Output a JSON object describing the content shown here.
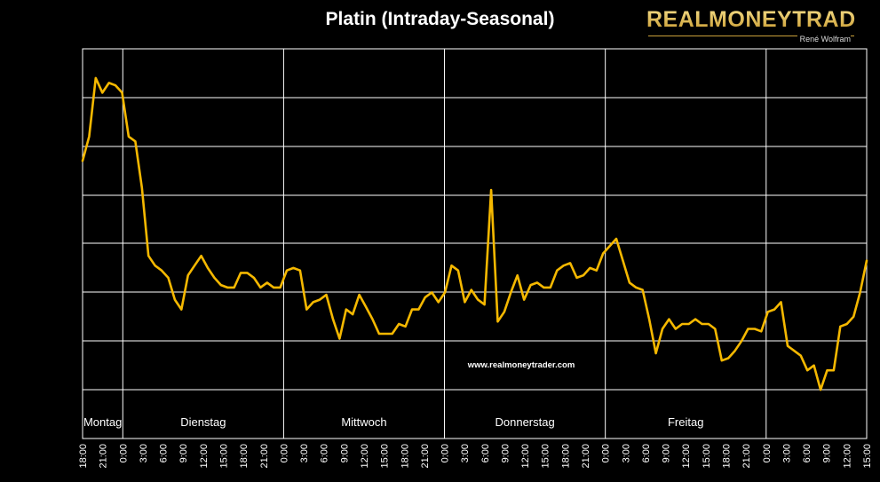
{
  "title": "Platin (Intraday-Seasonal)",
  "logo": {
    "name": "REALMONEYTRADER",
    "author": "René Wolfram"
  },
  "watermark": "www.realmoneytrader.com",
  "colors": {
    "background": "#000000",
    "line": "#f5b800",
    "grid": "#ffffff",
    "text": "#ffffff"
  },
  "chart_data": {
    "type": "line",
    "title": "Platin (Intraday-Seasonal)",
    "xlabel": "",
    "ylabel": "",
    "grid": true,
    "y_tick_labels_shown": false,
    "days": [
      "Montag",
      "Dienstag",
      "Mittwoch",
      "Donnerstag",
      "Freitag"
    ],
    "x_tick_labels": [
      "18:00",
      "21:00",
      "0:00",
      "3:00",
      "6:00",
      "9:00",
      "12:00",
      "15:00",
      "18:00",
      "21:00",
      "0:00",
      "3:00",
      "6:00",
      "9:00",
      "12:00",
      "15:00",
      "18:00",
      "21:00",
      "0:00",
      "3:00",
      "6:00",
      "9:00",
      "12:00",
      "15:00",
      "18:00",
      "21:00",
      "0:00",
      "3:00",
      "6:00",
      "9:00",
      "12:00",
      "15:00",
      "18:00",
      "21:00",
      "0:00",
      "3:00",
      "6:00",
      "9:00",
      "12:00",
      "15:00"
    ],
    "series": [
      {
        "values": [
          0.77,
          0.82,
          0.94,
          0.91,
          0.93,
          0.925,
          0.91,
          0.82,
          0.81,
          0.715,
          0.575,
          0.555,
          0.545,
          0.53,
          0.485,
          0.465,
          0.535,
          0.555,
          0.575,
          0.55,
          0.53,
          0.515,
          0.51,
          0.51,
          0.54,
          0.54,
          0.53,
          0.51,
          0.52,
          0.51,
          0.51,
          0.545,
          0.55,
          0.545,
          0.465,
          0.48,
          0.485,
          0.495,
          0.445,
          0.405,
          0.465,
          0.455,
          0.495,
          0.47,
          0.445,
          0.415,
          0.415,
          0.415,
          0.435,
          0.43,
          0.465,
          0.465,
          0.49,
          0.5,
          0.48,
          0.5,
          0.555,
          0.545,
          0.48,
          0.505,
          0.485,
          0.475,
          0.71,
          0.44,
          0.46,
          0.5,
          0.535,
          0.485,
          0.515,
          0.52,
          0.51,
          0.51,
          0.545,
          0.555,
          0.56,
          0.53,
          0.535,
          0.55,
          0.545,
          0.58,
          0.595,
          0.61,
          0.565,
          0.52,
          0.51,
          0.505,
          0.445,
          0.375,
          0.425,
          0.445,
          0.425,
          0.435,
          0.435,
          0.445,
          0.435,
          0.435,
          0.425,
          0.36,
          0.365,
          0.38,
          0.4,
          0.425,
          0.425,
          0.42,
          0.46,
          0.465,
          0.48,
          0.39,
          0.38,
          0.37,
          0.34,
          0.35,
          0.3,
          0.34,
          0.34,
          0.43,
          0.435,
          0.45,
          0.5,
          0.565
        ]
      }
    ]
  }
}
